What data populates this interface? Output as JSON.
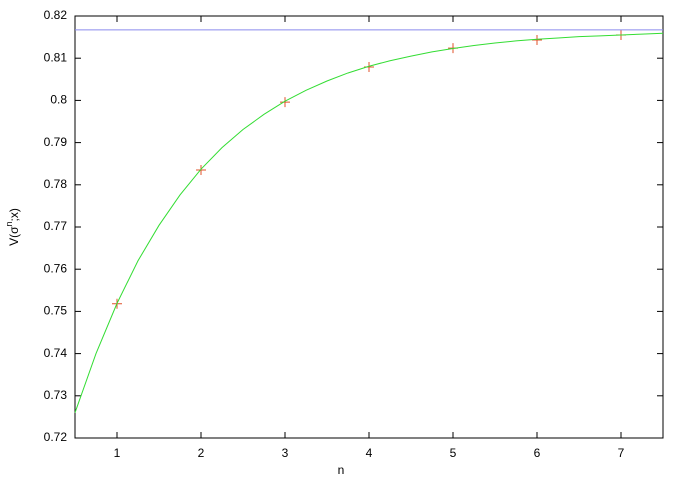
{
  "chart_data": {
    "type": "line",
    "x_label": "n",
    "y_label": [
      "V(σ",
      "n",
      ";x)"
    ],
    "xlim": [
      0.5,
      7.5
    ],
    "ylim": [
      0.72,
      0.82
    ],
    "xticks": [
      1,
      2,
      3,
      4,
      5,
      6,
      7
    ],
    "yticks": [
      0.72,
      0.73,
      0.74,
      0.75,
      0.76,
      0.77,
      0.78,
      0.79,
      0.8,
      0.81,
      0.82
    ],
    "grid": false,
    "series": [
      {
        "style": "points",
        "color": "#e0502a",
        "x": [
          1,
          2,
          3,
          4,
          5,
          6,
          7
        ],
        "values": [
          0.7518,
          0.7835,
          0.7996,
          0.8079,
          0.8124,
          0.8143,
          0.8155
        ]
      },
      {
        "style": "line",
        "color": "#33dd33",
        "x": [
          0.5,
          0.75,
          1,
          1.25,
          1.5,
          1.75,
          2,
          2.25,
          2.5,
          2.75,
          3,
          3.25,
          3.5,
          3.75,
          4,
          4.25,
          4.5,
          4.75,
          5,
          5.25,
          5.5,
          5.75,
          6,
          6.25,
          6.5,
          6.75,
          7,
          7.25,
          7.5
        ],
        "values": [
          0.726,
          0.74,
          0.7519,
          0.762,
          0.7704,
          0.7776,
          0.7837,
          0.7888,
          0.7931,
          0.7967,
          0.7998,
          0.8024,
          0.8046,
          0.8065,
          0.8081,
          0.8094,
          0.8105,
          0.8115,
          0.8123,
          0.813,
          0.8136,
          0.8141,
          0.8145,
          0.8148,
          0.8151,
          0.8153,
          0.8155,
          0.8157,
          0.8159
        ]
      },
      {
        "style": "line",
        "color": "#8a8aee",
        "x": [
          0.5,
          7.5
        ],
        "values": [
          0.8167,
          0.8167
        ]
      }
    ]
  }
}
